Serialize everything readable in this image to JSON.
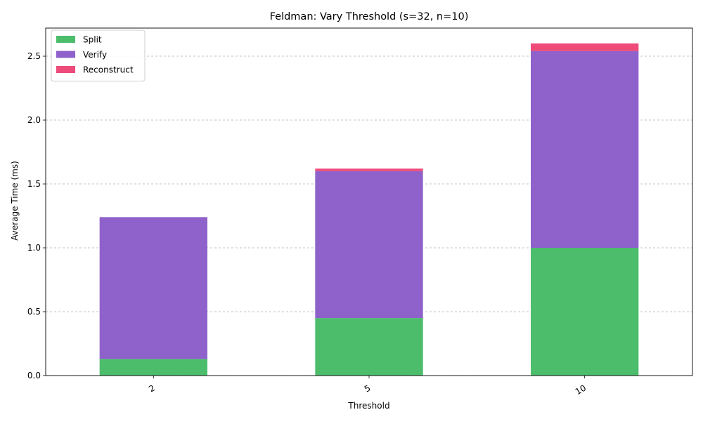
{
  "chart_data": {
    "type": "bar",
    "stacked": true,
    "title": "Feldman: Vary Threshold (s=32, n=10)",
    "xlabel": "Threshold",
    "ylabel": "Average Time (ms)",
    "categories": [
      "2",
      "5",
      "10"
    ],
    "series": [
      {
        "name": "Split",
        "values": [
          0.13,
          0.45,
          1.0
        ],
        "color": "#4cbd6b"
      },
      {
        "name": "Verify",
        "values": [
          1.11,
          1.15,
          1.54
        ],
        "color": "#8e61cb"
      },
      {
        "name": "Reconstruct",
        "values": [
          0.0,
          0.02,
          0.06
        ],
        "color": "#ee4a7a"
      }
    ],
    "ylim": [
      0,
      2.72
    ],
    "yticks": [
      "0.0",
      "0.5",
      "1.0",
      "1.5",
      "2.0",
      "2.5"
    ],
    "grid": "y-dashed",
    "legend_position": "top-left",
    "xtick_rotation": -30
  }
}
